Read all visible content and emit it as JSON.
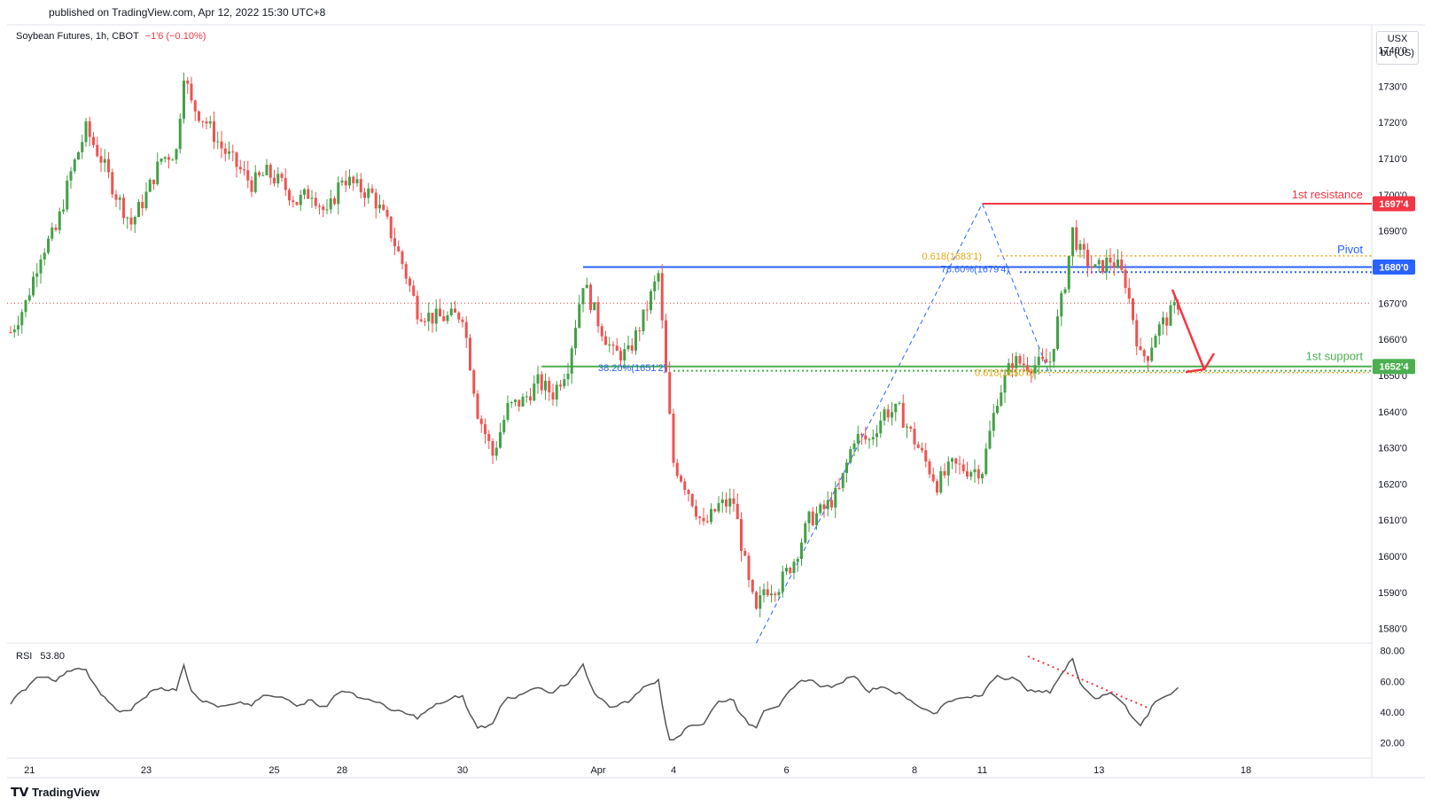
{
  "header": {
    "published": "published on TradingView.com, Apr 12, 2022 15:30 UTC+8",
    "symbol": "Soybean Futures, 1h, CBOT",
    "change": "−1'6 (−0.10%)"
  },
  "price_axis": {
    "currency": "USX",
    "unit": "bu (US)",
    "ticks": [
      "1740'0",
      "1730'0",
      "1720'0",
      "1710'0",
      "1700'0",
      "1690'0",
      "1680'0",
      "1670'0",
      "1660'0",
      "1650'0",
      "1640'0",
      "1630'0",
      "1620'0",
      "1610'0",
      "1600'0",
      "1590'0",
      "1580'0"
    ]
  },
  "levels": {
    "resistance": {
      "name": "1st resistance",
      "tag": "1697'4",
      "value": 1697.5,
      "color": "#f23645"
    },
    "pivot": {
      "name": "Pivot",
      "tag": "1680'0",
      "value": 1680.0,
      "color": "#2962ff"
    },
    "support": {
      "name": "1st support",
      "tag": "1652'4",
      "value": 1652.5,
      "color": "#4caf50"
    }
  },
  "fib_labels": {
    "fib1": "0.618(1683'1)",
    "fib2": "78.60%(1679'4)",
    "fib3": "38.20%(1651'2)",
    "fib4": "0.618(1650'6)"
  },
  "rsi": {
    "label": "RSI",
    "value": "53.80",
    "ticks": [
      "80.00",
      "60.00",
      "40.00",
      "20.00"
    ]
  },
  "time_axis": {
    "labels": [
      "21",
      "23",
      "25",
      "28",
      "30",
      "Apr",
      "4",
      "6",
      "8",
      "11",
      "13",
      "18"
    ]
  },
  "footer": {
    "brand": "TradingView"
  },
  "colors": {
    "up": "#26a69a",
    "down": "#ef5350",
    "up_candle": "#43a047",
    "down_candle": "#ef5350",
    "fib": "#e6a817",
    "dashed_trend": "#2962ff",
    "rsi_line": "#555555",
    "arrow": "#f23645"
  },
  "chart_data": {
    "type": "candlestick",
    "title": "Soybean Futures, 1h, CBOT",
    "ylabel": "USX",
    "ylim": [
      1576,
      1747
    ],
    "price_path": [
      [
        0,
        1662
      ],
      [
        4,
        1670
      ],
      [
        8,
        1684
      ],
      [
        12,
        1690
      ],
      [
        16,
        1706
      ],
      [
        20,
        1718
      ],
      [
        24,
        1710
      ],
      [
        28,
        1700
      ],
      [
        32,
        1692
      ],
      [
        36,
        1700
      ],
      [
        40,
        1710
      ],
      [
        44,
        1712
      ],
      [
        46,
        1734
      ],
      [
        48,
        1725
      ],
      [
        52,
        1720
      ],
      [
        56,
        1713
      ],
      [
        60,
        1708
      ],
      [
        64,
        1703
      ],
      [
        68,
        1706
      ],
      [
        72,
        1703
      ],
      [
        76,
        1698
      ],
      [
        80,
        1701
      ],
      [
        84,
        1694
      ],
      [
        88,
        1705
      ],
      [
        92,
        1702
      ],
      [
        96,
        1700
      ],
      [
        100,
        1692
      ],
      [
        104,
        1681
      ],
      [
        108,
        1668
      ],
      [
        112,
        1666
      ],
      [
        116,
        1666
      ],
      [
        120,
        1667
      ],
      [
        124,
        1640
      ],
      [
        128,
        1628
      ],
      [
        132,
        1641
      ],
      [
        136,
        1643
      ],
      [
        140,
        1648
      ],
      [
        144,
        1645
      ],
      [
        148,
        1653
      ],
      [
        152,
        1676
      ],
      [
        156,
        1665
      ],
      [
        160,
        1656
      ],
      [
        164,
        1656
      ],
      [
        168,
        1666
      ],
      [
        172,
        1678
      ],
      [
        174,
        1650
      ],
      [
        176,
        1626
      ],
      [
        180,
        1618
      ],
      [
        184,
        1608
      ],
      [
        188,
        1614
      ],
      [
        192,
        1615
      ],
      [
        196,
        1592
      ],
      [
        198,
        1584
      ],
      [
        200,
        1591
      ],
      [
        204,
        1592
      ],
      [
        208,
        1599
      ],
      [
        212,
        1610
      ],
      [
        216,
        1613
      ],
      [
        220,
        1618
      ],
      [
        224,
        1633
      ],
      [
        228,
        1632
      ],
      [
        232,
        1640
      ],
      [
        236,
        1640
      ],
      [
        238,
        1636
      ],
      [
        242,
        1628
      ],
      [
        246,
        1620
      ],
      [
        250,
        1625
      ],
      [
        254,
        1624
      ],
      [
        258,
        1624
      ],
      [
        262,
        1644
      ],
      [
        266,
        1654
      ],
      [
        270,
        1653
      ],
      [
        274,
        1653
      ],
      [
        276,
        1654
      ],
      [
        280,
        1676
      ],
      [
        282,
        1690
      ],
      [
        284,
        1684
      ],
      [
        288,
        1679
      ],
      [
        292,
        1682
      ],
      [
        294,
        1680
      ],
      [
        296,
        1676
      ],
      [
        298,
        1666
      ],
      [
        300,
        1655
      ],
      [
        302,
        1656
      ],
      [
        304,
        1662
      ],
      [
        308,
        1667
      ],
      [
        310,
        1670
      ]
    ]
  }
}
